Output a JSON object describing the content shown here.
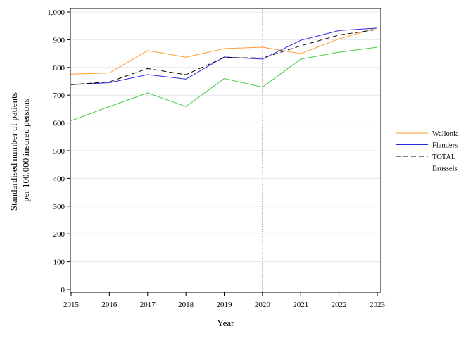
{
  "chart_data": {
    "type": "line",
    "title": "",
    "xlabel": "Year",
    "ylabel_lines": [
      "Standardised number of patients",
      "per 100,000 insured persons"
    ],
    "x": [
      2015,
      2016,
      2017,
      2018,
      2019,
      2020,
      2021,
      2022,
      2023
    ],
    "x_tick_labels": [
      "2015",
      "2016",
      "2017",
      "2018",
      "2019",
      "2020",
      "2021",
      "2022",
      "2023"
    ],
    "xlim": [
      2015,
      2023
    ],
    "ylim": [
      0,
      1000
    ],
    "y_ticks": [
      0,
      100,
      200,
      300,
      400,
      500,
      600,
      700,
      800,
      900,
      1000
    ],
    "y_tick_labels": [
      "0",
      "100",
      "200",
      "300",
      "400",
      "500",
      "600",
      "700",
      "800",
      "900",
      "1,000"
    ],
    "grid": "horizontal",
    "reference_line": {
      "x": 2020,
      "style": "dotted",
      "color": "#c0607a"
    },
    "legend_placement": "right",
    "series": [
      {
        "name": "Wallonia",
        "color": "#ff9a2e",
        "dash": "solid",
        "values": [
          776,
          780,
          861,
          837,
          868,
          873,
          850,
          903,
          943
        ]
      },
      {
        "name": "Flanders",
        "color": "#2a2ae0",
        "dash": "solid",
        "values": [
          738,
          745,
          774,
          758,
          838,
          830,
          898,
          933,
          942
        ]
      },
      {
        "name": "TOTAL",
        "color": "#000000",
        "dash": "dashed",
        "values": [
          738,
          748,
          796,
          774,
          836,
          834,
          878,
          917,
          937
        ]
      },
      {
        "name": "Brussels",
        "color": "#44cc44",
        "dash": "solid",
        "values": [
          608,
          659,
          708,
          659,
          760,
          729,
          830,
          855,
          873
        ]
      }
    ]
  }
}
